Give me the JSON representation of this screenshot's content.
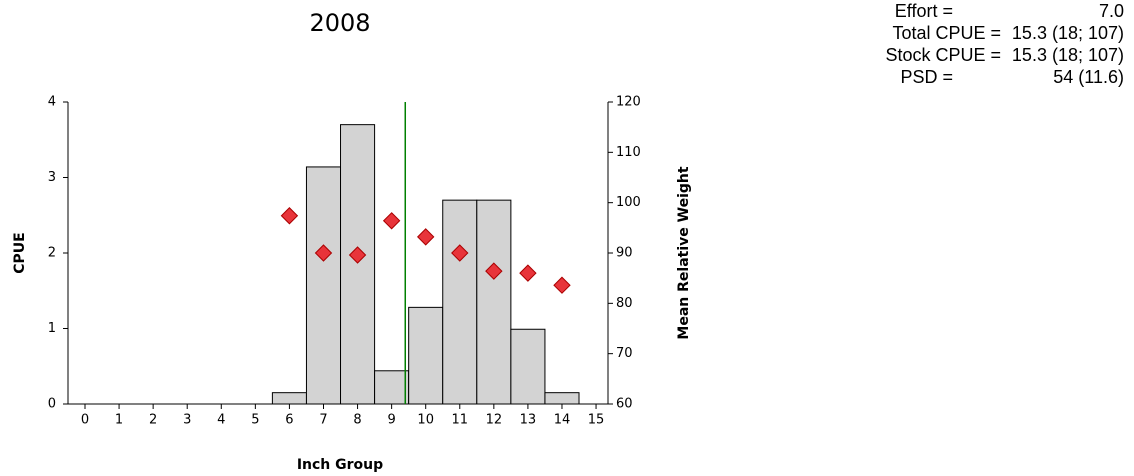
{
  "chart_data": {
    "type": "bar",
    "title": "2008",
    "x_label": "Inch Group",
    "y_label": "CPUE",
    "y2_label": "Mean Relative Weight",
    "categories": [
      "0",
      "1",
      "2",
      "3",
      "4",
      "5",
      "6",
      "7",
      "8",
      "9",
      "10",
      "11",
      "12",
      "13",
      "14",
      "15"
    ],
    "series": [
      {
        "type": "bar",
        "color": "#d3d3d3",
        "values": [
          0,
          0,
          0,
          0,
          0,
          0,
          0.15,
          3.14,
          3.7,
          0.44,
          1.28,
          2.7,
          2.7,
          0.99,
          0.15,
          0
        ]
      },
      {
        "type": "scatter",
        "axis": "y2",
        "color": "#e8343a",
        "values": [
          null,
          null,
          null,
          null,
          null,
          null,
          97.4,
          90.0,
          89.6,
          96.4,
          93.2,
          90.0,
          86.4,
          86.0,
          83.6,
          null
        ]
      }
    ],
    "vline": {
      "x": 9.4,
      "color": "#008000"
    },
    "ylim": [
      0,
      4
    ],
    "yticks": [
      0,
      1,
      2,
      3,
      4
    ],
    "y2lim": [
      60,
      120
    ],
    "y2ticks": [
      60,
      70,
      80,
      90,
      100,
      110,
      120
    ],
    "stats": [
      {
        "label": "Effort =",
        "value": "7.0"
      },
      {
        "label": "Total CPUE =",
        "value": "15.3 (18; 107)"
      },
      {
        "label": "Stock CPUE =",
        "value": "15.3 (18; 107)"
      },
      {
        "label": "PSD =",
        "value": "54 (11.6)"
      }
    ]
  }
}
